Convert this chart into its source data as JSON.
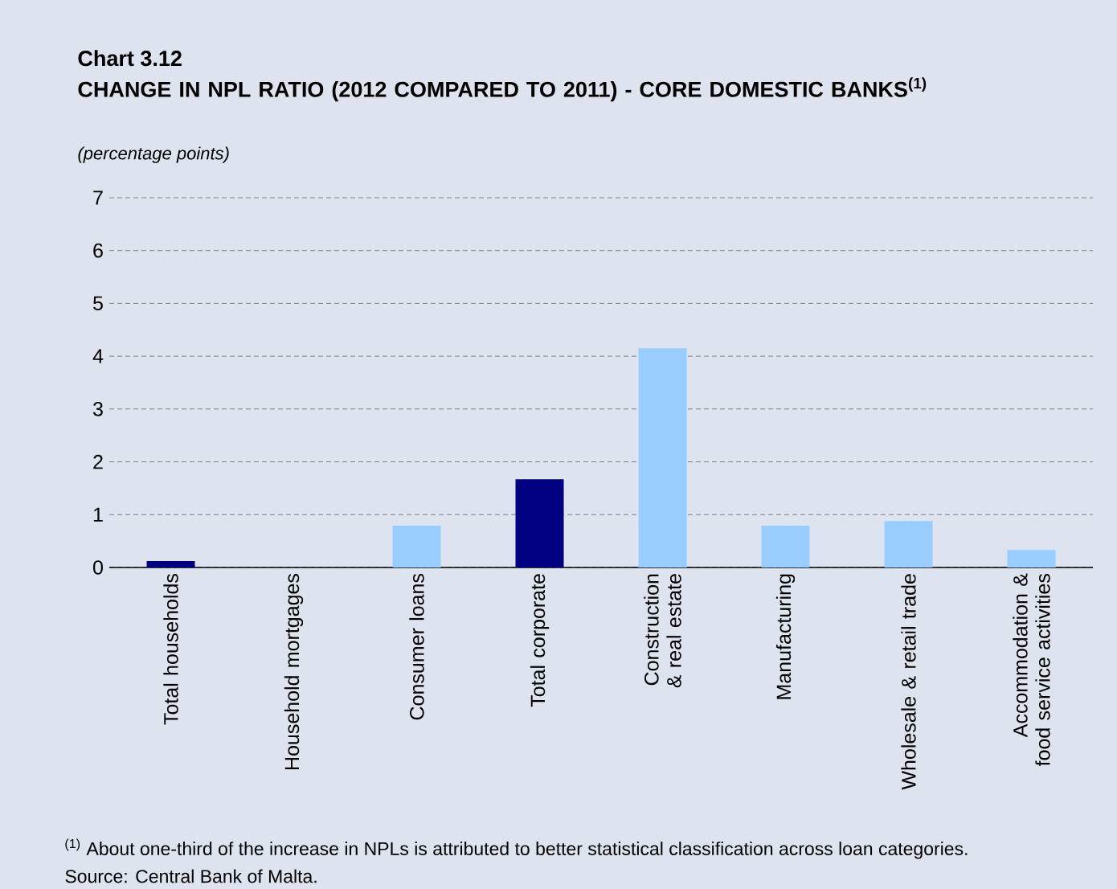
{
  "chart_data": {
    "type": "bar",
    "title": "CHANGE IN NPL RATIO (2012 COMPARED TO 2011) - CORE DOMESTIC BANKS$^{(1)}$",
    "subtitle": "(percentage points)",
    "categories": [
      "Total households",
      "Household mortgages",
      "Consumer loans",
      "Total corporate",
      "Construction & real estate",
      "Manufacturing",
      "Wholesale & retail trade",
      "Accommodation & food service activities"
    ],
    "values": [
      0.12,
      0,
      0.79,
      1.67,
      4.15,
      0.79,
      0.88,
      0.33
    ],
    "colors": [
      "#000080",
      "#000080",
      "#99ccff",
      "#000080",
      "#99ccff",
      "#99ccff",
      "#99ccff",
      "#99ccff"
    ],
    "ylim": [
      0,
      7
    ],
    "yticks": [
      0,
      1,
      2,
      3,
      4,
      5,
      6,
      7
    ],
    "grid": "y",
    "annotations": [
      "Chart 3.12",
      "$^{(1)}$ About one-third of the increase in NPLs is attributed to better statistical classification across loan categories.",
      "Source: Central Bank of Malta."
    ]
  }
}
